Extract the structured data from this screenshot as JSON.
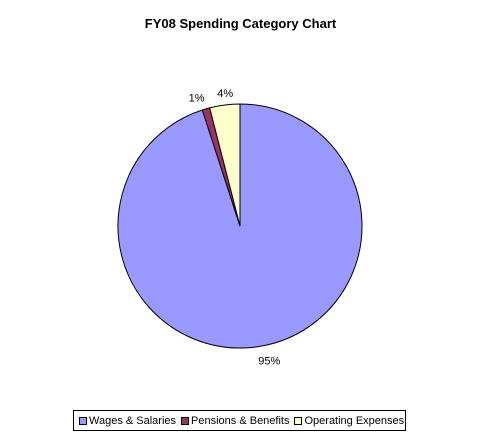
{
  "chart_data": {
    "type": "pie",
    "title": "FY08 Spending Category Chart",
    "slices": [
      {
        "label": "Wages & Salaries",
        "value": 95,
        "pct_label": "95%",
        "color": "#9999ff"
      },
      {
        "label": "Pensions & Benefits",
        "value": 1,
        "pct_label": "1%",
        "color": "#993366"
      },
      {
        "label": "Operating Expenses",
        "value": 4,
        "pct_label": "4%",
        "color": "#ffffcc"
      }
    ],
    "legend_position": "bottom",
    "start_angle": "12 o'clock",
    "direction": "clockwise",
    "colors": {
      "outline": "#000000",
      "background": "#ffffff"
    }
  }
}
